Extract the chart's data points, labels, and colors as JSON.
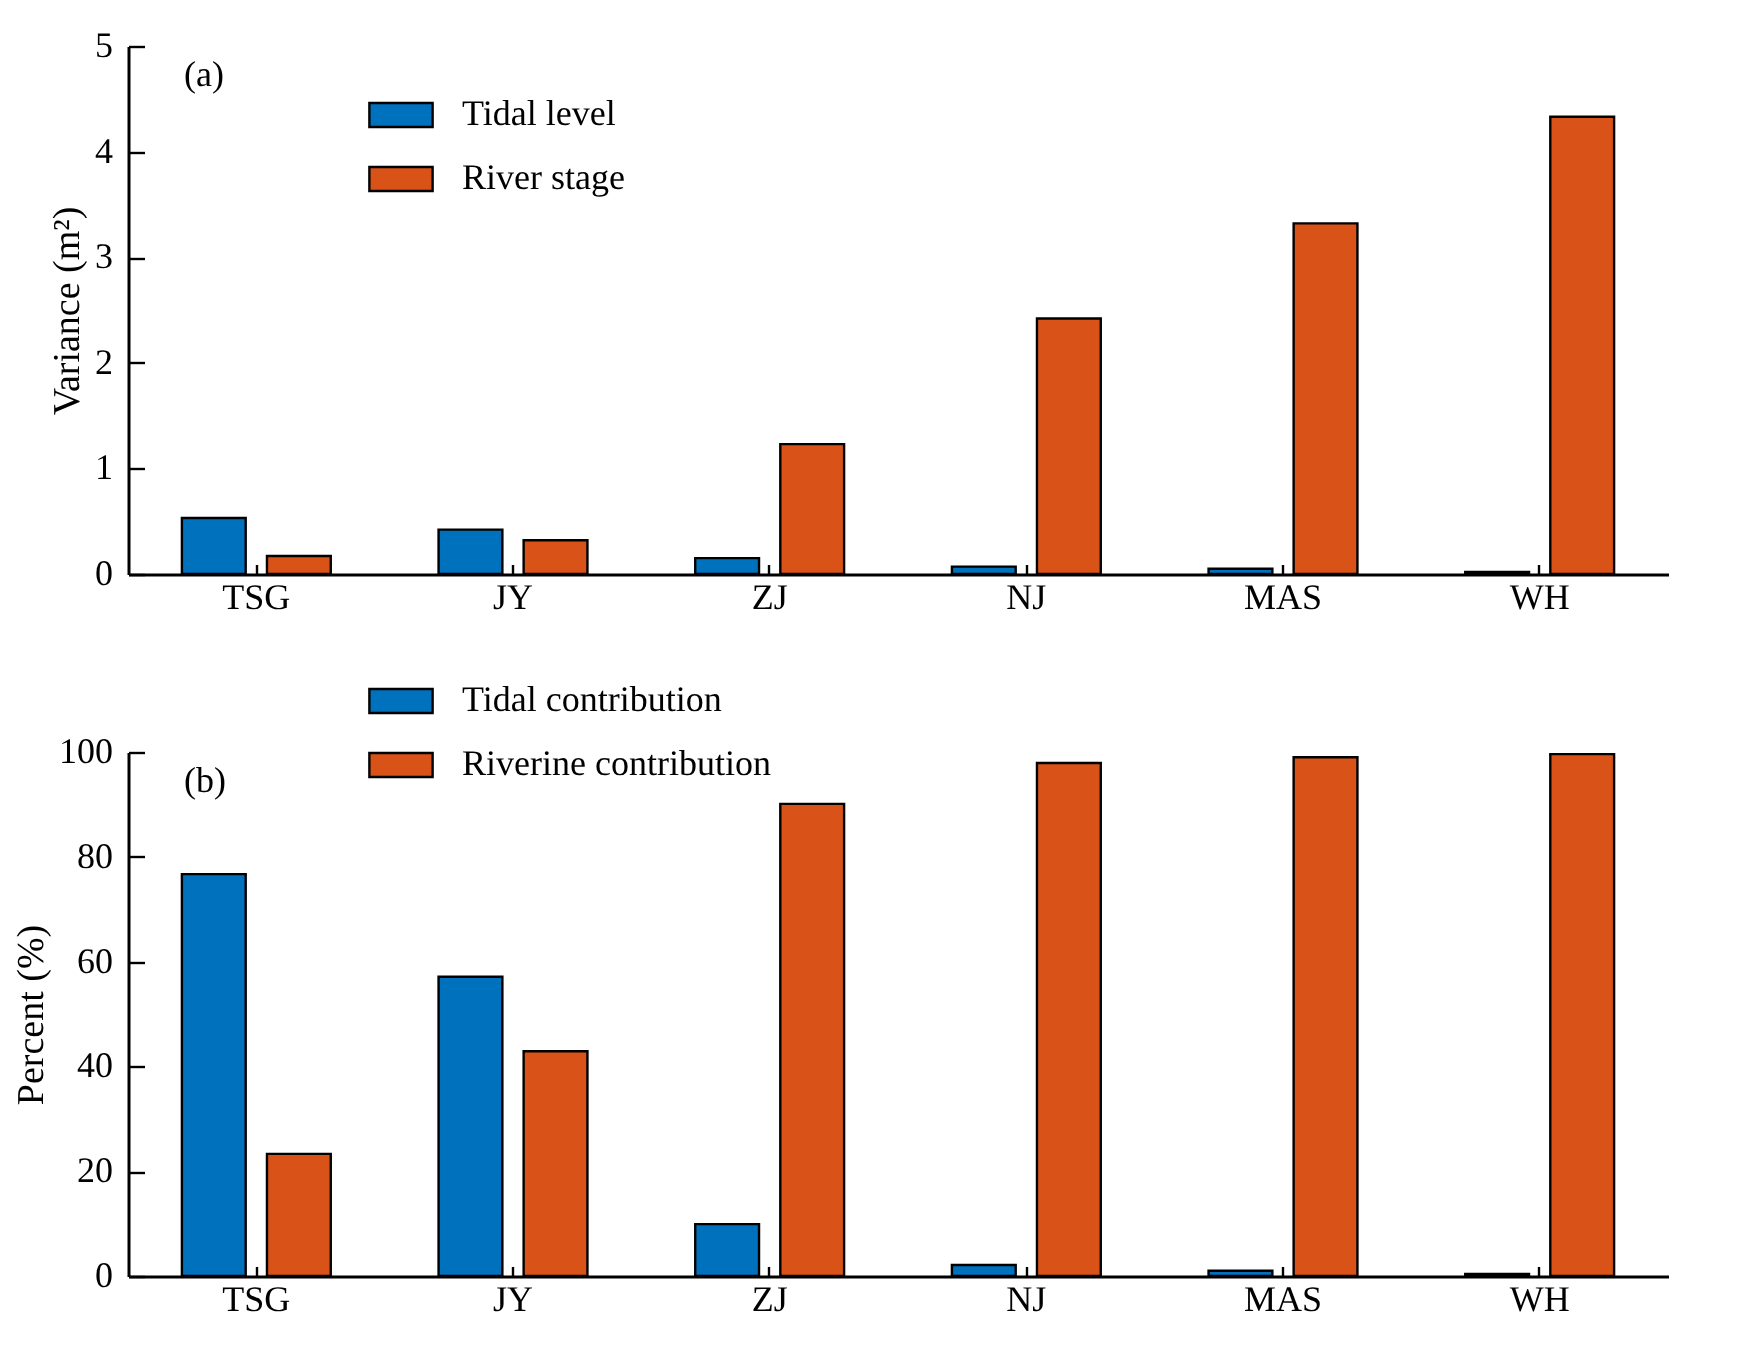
{
  "chart_data": [
    {
      "type": "bar",
      "ylabel": "Variance (m²)",
      "annotations": [
        "(a)"
      ],
      "categories": [
        "TSG",
        "JY",
        "ZJ",
        "NJ",
        "MAS",
        "WH"
      ],
      "series": [
        {
          "name": "Tidal level",
          "color": "#0072bd",
          "values": [
            0.53,
            0.42,
            0.15,
            0.07,
            0.05,
            0.02
          ]
        },
        {
          "name": "River stage",
          "color": "#d95319",
          "values": [
            0.17,
            0.32,
            1.23,
            2.42,
            3.32,
            4.33
          ]
        }
      ],
      "ylim": [
        0,
        5
      ],
      "yticks": [
        0,
        1,
        2,
        3,
        4,
        5
      ],
      "legend": "top left"
    },
    {
      "type": "bar",
      "ylabel": "Percent (%)",
      "annotations": [
        "(b)"
      ],
      "categories": [
        "TSG",
        "JY",
        "ZJ",
        "NJ",
        "MAS",
        "WH"
      ],
      "series": [
        {
          "name": "Tidal contribution",
          "color": "#0072bd",
          "values": [
            76.7,
            57.1,
            9.9,
            2.1,
            1.0,
            0.4
          ]
        },
        {
          "name": "Riverine contribution",
          "color": "#d95319",
          "values": [
            23.3,
            42.9,
            90.1,
            97.9,
            99.0,
            99.6
          ]
        }
      ],
      "ylim": [
        0,
        100
      ],
      "yticks": [
        0,
        20,
        40,
        60,
        80,
        100
      ],
      "legend": "top left"
    }
  ]
}
